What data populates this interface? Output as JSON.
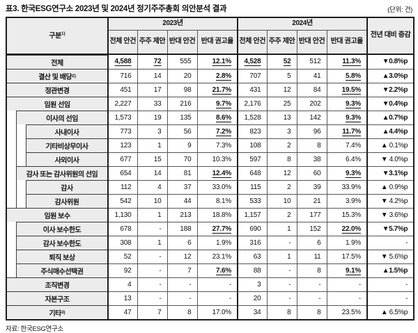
{
  "title": "표3. 한국ESG연구소 2023년 및 2024년 정기주주총회 의안분석 결과",
  "unit_note": "(단위: 건)",
  "source_note": "자료: 한국ESG연구소",
  "colors": {
    "header_bg": "#ececec",
    "border_dark": "#1d1d1d",
    "border_light": "#555555",
    "text": "#111111"
  },
  "table": {
    "col_group_label": "구분",
    "col_group_sup": "1)",
    "change_label": "전년 대비 증감",
    "year_groups": [
      {
        "label": "2023년",
        "sub": [
          "전체 안건",
          "주주 제안",
          "반대 안건",
          "반대 권고율"
        ]
      },
      {
        "label": "2024년",
        "sub": [
          "전체 안건",
          "주주 제안",
          "반대 안건",
          "반대 권고율"
        ]
      }
    ],
    "rows": [
      {
        "label": "전체",
        "sup": "",
        "level": 0,
        "cells": [
          {
            "v": "4,588",
            "em": true
          },
          {
            "v": "72",
            "em": true
          },
          {
            "v": "555",
            "em": false
          },
          {
            "v": "12.1%",
            "em": true
          },
          {
            "v": "4,528",
            "em": true
          },
          {
            "v": "52",
            "em": true
          },
          {
            "v": "512",
            "em": false
          },
          {
            "v": "11.3%",
            "em": true
          }
        ],
        "change": {
          "v": "▼0.8%p",
          "bold": true
        }
      },
      {
        "label": "결산 및 배당",
        "sup": "2)",
        "level": 0,
        "cells": [
          {
            "v": "716",
            "em": false
          },
          {
            "v": "14",
            "em": false
          },
          {
            "v": "20",
            "em": false
          },
          {
            "v": "2.8%",
            "em": true
          },
          {
            "v": "707",
            "em": false
          },
          {
            "v": "5",
            "em": false
          },
          {
            "v": "41",
            "em": false
          },
          {
            "v": "5.8%",
            "em": true
          }
        ],
        "change": {
          "v": "▲3.0%p",
          "bold": true
        }
      },
      {
        "label": "정관변경",
        "sup": "",
        "level": 0,
        "cells": [
          {
            "v": "451",
            "em": false
          },
          {
            "v": "17",
            "em": false
          },
          {
            "v": "98",
            "em": false
          },
          {
            "v": "21.7%",
            "em": true
          },
          {
            "v": "431",
            "em": false
          },
          {
            "v": "12",
            "em": false
          },
          {
            "v": "84",
            "em": false
          },
          {
            "v": "19.5%",
            "em": true
          }
        ],
        "change": {
          "v": "▼2.2%p",
          "bold": true
        }
      },
      {
        "label": "임원 선임",
        "sup": "",
        "level": 0,
        "cells": [
          {
            "v": "2,227",
            "em": false
          },
          {
            "v": "33",
            "em": false
          },
          {
            "v": "216",
            "em": false
          },
          {
            "v": "9.7%",
            "em": true
          },
          {
            "v": "2,176",
            "em": false
          },
          {
            "v": "25",
            "em": false
          },
          {
            "v": "202",
            "em": false
          },
          {
            "v": "9.3%",
            "em": true
          }
        ],
        "change": {
          "v": "▼0.4%p",
          "bold": true
        }
      },
      {
        "label": "이사의 선임",
        "sup": "",
        "level": 1,
        "cells": [
          {
            "v": "1,573",
            "em": false
          },
          {
            "v": "19",
            "em": false
          },
          {
            "v": "135",
            "em": false
          },
          {
            "v": "8.6%",
            "em": true
          },
          {
            "v": "1,528",
            "em": false
          },
          {
            "v": "13",
            "em": false
          },
          {
            "v": "142",
            "em": false
          },
          {
            "v": "9.3%",
            "em": true
          }
        ],
        "change": {
          "v": "▲0.7%p",
          "bold": true
        }
      },
      {
        "label": "사내이사",
        "sup": "",
        "level": 2,
        "cells": [
          {
            "v": "773",
            "em": false
          },
          {
            "v": "3",
            "em": false
          },
          {
            "v": "56",
            "em": false
          },
          {
            "v": "7.2%",
            "em": true
          },
          {
            "v": "823",
            "em": false
          },
          {
            "v": "3",
            "em": false
          },
          {
            "v": "96",
            "em": false
          },
          {
            "v": "11.7%",
            "em": true
          }
        ],
        "change": {
          "v": "▲4.4%p",
          "bold": true
        }
      },
      {
        "label": "기타비상무이사",
        "sup": "",
        "level": 2,
        "cells": [
          {
            "v": "123",
            "em": false
          },
          {
            "v": "1",
            "em": false
          },
          {
            "v": "9",
            "em": false
          },
          {
            "v": "7.3%",
            "em": false
          },
          {
            "v": "108",
            "em": false
          },
          {
            "v": "2",
            "em": false
          },
          {
            "v": "8",
            "em": false
          },
          {
            "v": "7.4%",
            "em": false
          }
        ],
        "change": {
          "v": "▲ 0.1%p",
          "bold": false
        }
      },
      {
        "label": "사외이사",
        "sup": "",
        "level": 2,
        "cells": [
          {
            "v": "677",
            "em": false
          },
          {
            "v": "15",
            "em": false
          },
          {
            "v": "70",
            "em": false
          },
          {
            "v": "10.3%",
            "em": false
          },
          {
            "v": "597",
            "em": false
          },
          {
            "v": "8",
            "em": false
          },
          {
            "v": "38",
            "em": false
          },
          {
            "v": "6.4%",
            "em": false
          }
        ],
        "change": {
          "v": "▼ 4.0%p",
          "bold": false
        }
      },
      {
        "label": "감사 또는 감사위원의 선임",
        "sup": "",
        "level": 1,
        "cells": [
          {
            "v": "654",
            "em": false
          },
          {
            "v": "14",
            "em": false
          },
          {
            "v": "81",
            "em": false
          },
          {
            "v": "12.4%",
            "em": true
          },
          {
            "v": "648",
            "em": false
          },
          {
            "v": "12",
            "em": false
          },
          {
            "v": "60",
            "em": false
          },
          {
            "v": "9.3%",
            "em": true
          }
        ],
        "change": {
          "v": "▼3.1%p",
          "bold": true
        }
      },
      {
        "label": "감사",
        "sup": "",
        "level": 2,
        "cells": [
          {
            "v": "112",
            "em": false
          },
          {
            "v": "4",
            "em": false
          },
          {
            "v": "37",
            "em": false
          },
          {
            "v": "33.0%",
            "em": false
          },
          {
            "v": "115",
            "em": false
          },
          {
            "v": "2",
            "em": false
          },
          {
            "v": "39",
            "em": false
          },
          {
            "v": "33.9%",
            "em": false
          }
        ],
        "change": {
          "v": "▲ 0.9%p",
          "bold": false
        }
      },
      {
        "label": "감사위원",
        "sup": "",
        "level": 2,
        "cells": [
          {
            "v": "542",
            "em": false
          },
          {
            "v": "10",
            "em": false
          },
          {
            "v": "44",
            "em": false
          },
          {
            "v": "8.1%",
            "em": false
          },
          {
            "v": "533",
            "em": false
          },
          {
            "v": "10",
            "em": false
          },
          {
            "v": "21",
            "em": false
          },
          {
            "v": "3.9%",
            "em": false
          }
        ],
        "change": {
          "v": "▼ 4.2%p",
          "bold": false
        }
      },
      {
        "label": "임원 보수",
        "sup": "",
        "level": 0,
        "cells": [
          {
            "v": "1,130",
            "em": false
          },
          {
            "v": "1",
            "em": false
          },
          {
            "v": "213",
            "em": false
          },
          {
            "v": "18.8%",
            "em": false
          },
          {
            "v": "1,157",
            "em": false
          },
          {
            "v": "2",
            "em": false
          },
          {
            "v": "177",
            "em": false
          },
          {
            "v": "15.3%",
            "em": false
          }
        ],
        "change": {
          "v": "▼ 3.6%p",
          "bold": false
        }
      },
      {
        "label": "이사 보수한도",
        "sup": "",
        "level": 1,
        "cells": [
          {
            "v": "678",
            "em": false
          },
          {
            "v": "-",
            "em": false
          },
          {
            "v": "188",
            "em": false
          },
          {
            "v": "27.7%",
            "em": true
          },
          {
            "v": "690",
            "em": false
          },
          {
            "v": "1",
            "em": false
          },
          {
            "v": "152",
            "em": false
          },
          {
            "v": "22.0%",
            "em": true
          }
        ],
        "change": {
          "v": "▼5.7%p",
          "bold": true
        }
      },
      {
        "label": "감사 보수한도",
        "sup": "",
        "level": 1,
        "cells": [
          {
            "v": "308",
            "em": false
          },
          {
            "v": "1",
            "em": false
          },
          {
            "v": "6",
            "em": false
          },
          {
            "v": "1.9%",
            "em": false
          },
          {
            "v": "316",
            "em": false
          },
          {
            "v": "-",
            "em": false
          },
          {
            "v": "6",
            "em": false
          },
          {
            "v": "1.9%",
            "em": false
          }
        ],
        "change": {
          "v": "-",
          "bold": false
        }
      },
      {
        "label": "퇴직 보상",
        "sup": "",
        "level": 1,
        "cells": [
          {
            "v": "52",
            "em": false
          },
          {
            "v": "-",
            "em": false
          },
          {
            "v": "12",
            "em": false
          },
          {
            "v": "23.1%",
            "em": false
          },
          {
            "v": "63",
            "em": false
          },
          {
            "v": "1",
            "em": false
          },
          {
            "v": "11",
            "em": false
          },
          {
            "v": "17.5%",
            "em": false
          }
        ],
        "change": {
          "v": "▼ 5.6%p",
          "bold": false
        }
      },
      {
        "label": "주식매수선택권",
        "sup": "",
        "level": 1,
        "cells": [
          {
            "v": "92",
            "em": false
          },
          {
            "v": "-",
            "em": false
          },
          {
            "v": "7",
            "em": false
          },
          {
            "v": "7.6%",
            "em": true
          },
          {
            "v": "88",
            "em": false
          },
          {
            "v": "-",
            "em": false
          },
          {
            "v": "8",
            "em": false
          },
          {
            "v": "9.1%",
            "em": true
          }
        ],
        "change": {
          "v": "▲1.5%p",
          "bold": true
        }
      },
      {
        "label": "조직변경",
        "sup": "",
        "level": 0,
        "cells": [
          {
            "v": "4",
            "em": false
          },
          {
            "v": "-",
            "em": false
          },
          {
            "v": "-",
            "em": false
          },
          {
            "v": "-",
            "em": false
          },
          {
            "v": "3",
            "em": false
          },
          {
            "v": "-",
            "em": false
          },
          {
            "v": "-",
            "em": false
          },
          {
            "v": "-",
            "em": false
          }
        ],
        "change": {
          "v": "-",
          "bold": false
        }
      },
      {
        "label": "자본구조",
        "sup": "",
        "level": 0,
        "cells": [
          {
            "v": "13",
            "em": false
          },
          {
            "v": "-",
            "em": false
          },
          {
            "v": "-",
            "em": false
          },
          {
            "v": "-",
            "em": false
          },
          {
            "v": "20",
            "em": false
          },
          {
            "v": "-",
            "em": false
          },
          {
            "v": "-",
            "em": false
          },
          {
            "v": "-",
            "em": false
          }
        ],
        "change": {
          "v": "-",
          "bold": false
        }
      },
      {
        "label": "기타",
        "sup": "3)",
        "level": 0,
        "cells": [
          {
            "v": "47",
            "em": false
          },
          {
            "v": "7",
            "em": false
          },
          {
            "v": "8",
            "em": false
          },
          {
            "v": "17.0%",
            "em": false
          },
          {
            "v": "34",
            "em": false
          },
          {
            "v": "8",
            "em": false
          },
          {
            "v": "8",
            "em": false
          },
          {
            "v": "23.5%",
            "em": false
          }
        ],
        "change": {
          "v": "▲ 6.5%p",
          "bold": false
        }
      }
    ]
  }
}
